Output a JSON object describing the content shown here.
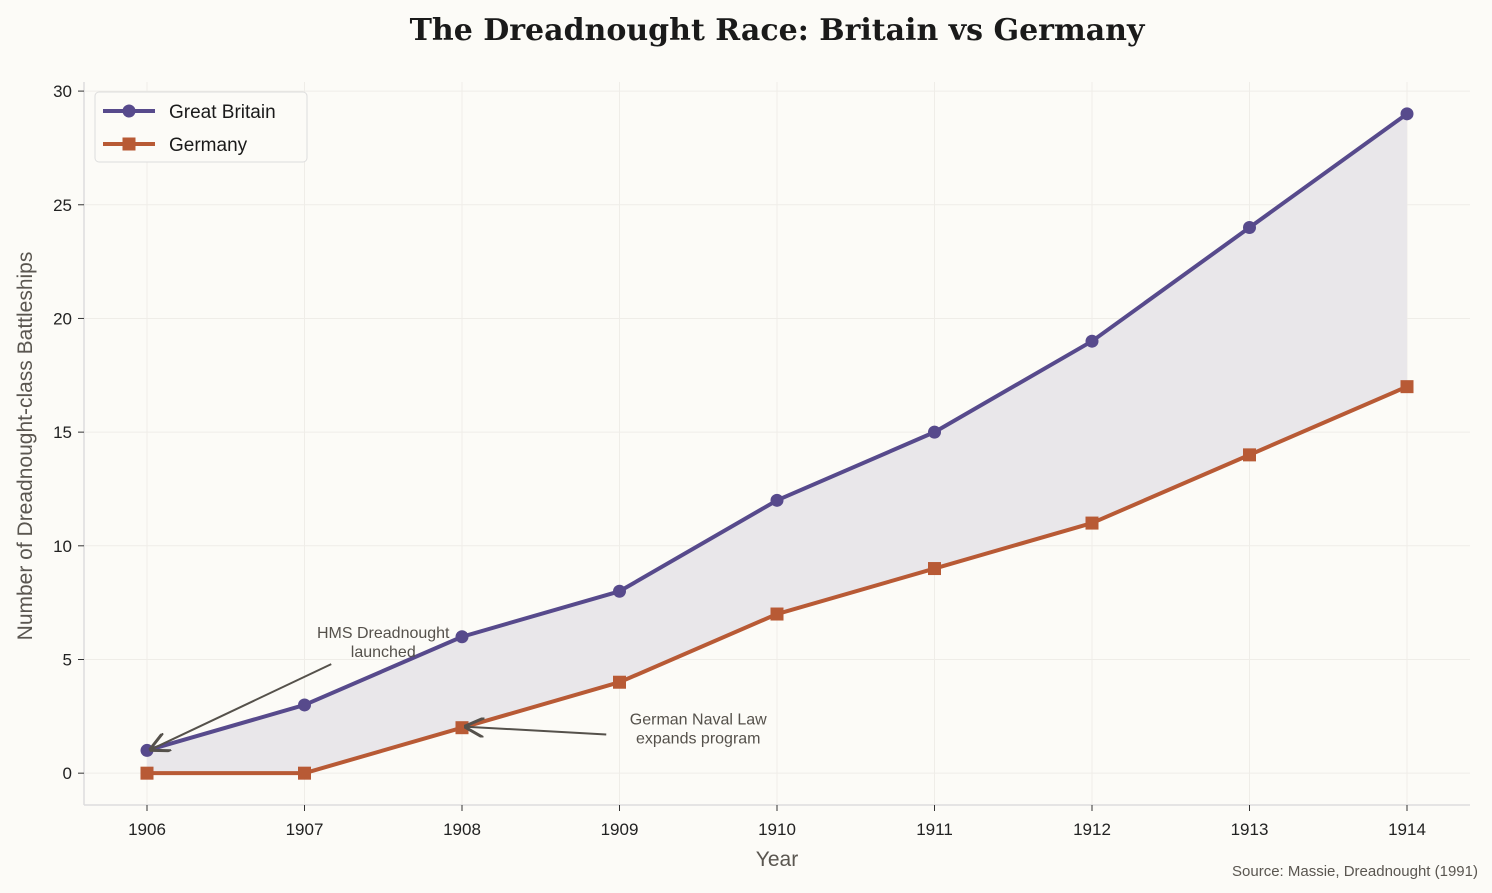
{
  "chart_data": {
    "type": "line",
    "title": "The Dreadnought Race: Britain vs Germany",
    "xlabel": "Year",
    "ylabel": "Number of Dreadnought-class Battleships",
    "x": [
      1906,
      1907,
      1908,
      1909,
      1910,
      1911,
      1912,
      1913,
      1914
    ],
    "xticks": [
      "1906",
      "1907",
      "1908",
      "1909",
      "1910",
      "1911",
      "1912",
      "1913",
      "1914"
    ],
    "yticks": [
      "0",
      "5",
      "10",
      "15",
      "20",
      "25",
      "30"
    ],
    "ylim": [
      -1.4,
      30.4
    ],
    "xlim": [
      1905.6,
      1914.4
    ],
    "grid": true,
    "legend_position": "top-left",
    "series": [
      {
        "name": "Great Britain",
        "values": [
          1,
          3,
          6,
          8,
          12,
          15,
          19,
          24,
          29
        ],
        "color": "#574a8c",
        "marker": "circle"
      },
      {
        "name": "Germany",
        "values": [
          0,
          0,
          2,
          4,
          7,
          9,
          11,
          14,
          17
        ],
        "color": "#b85a35",
        "marker": "square"
      }
    ],
    "fill_between_color": "#e9e7ea",
    "annotations": [
      {
        "lines": [
          "HMS Dreadnought",
          "launched"
        ],
        "target_x": 1906,
        "target_y": 1,
        "text_x": 1907.5,
        "text_y": 5.5
      },
      {
        "lines": [
          "German Naval Law",
          "expands program"
        ],
        "target_x": 1908,
        "target_y": 2,
        "text_x": 1909.5,
        "text_y": 1.7
      }
    ],
    "source": "Source: Massie, Dreadnought (1991)"
  }
}
